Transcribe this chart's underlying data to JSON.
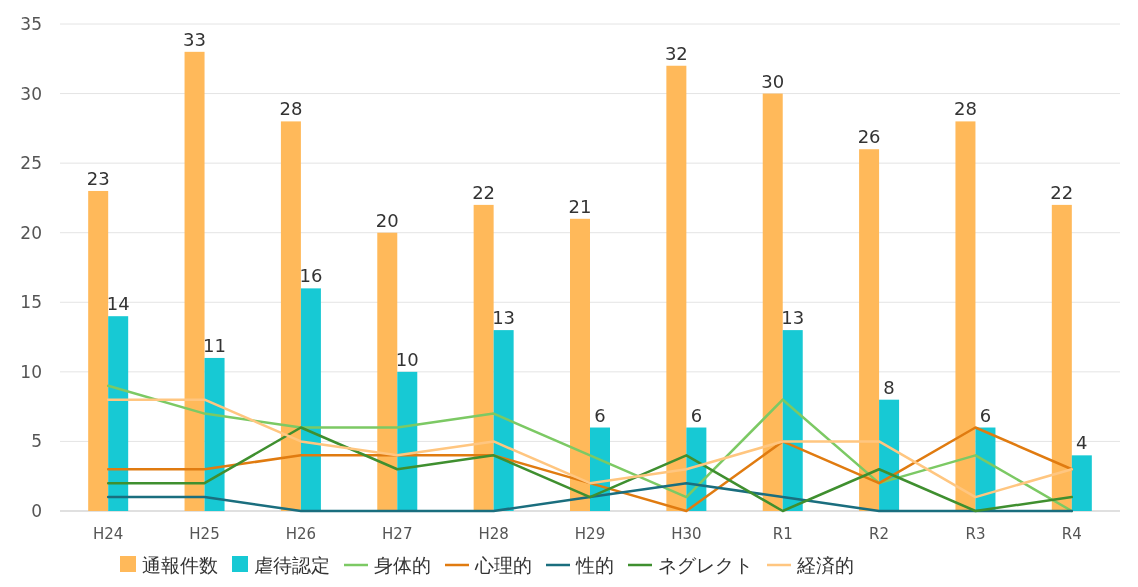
{
  "chart_data": {
    "type": "bar",
    "categories": [
      "H24",
      "H25",
      "H26",
      "H27",
      "H28",
      "H29",
      "H30",
      "R1",
      "R2",
      "R3",
      "R4"
    ],
    "series": [
      {
        "name": "通報件数",
        "color": "#ffb95a",
        "values": [
          23,
          33,
          28,
          20,
          22,
          21,
          32,
          30,
          26,
          28,
          22
        ],
        "data_labels": true
      },
      {
        "name": "虐待認定",
        "color": "#17c9d4",
        "values": [
          14,
          11,
          16,
          10,
          13,
          6,
          6,
          13,
          8,
          6,
          4
        ],
        "data_labels": true
      },
      {
        "name": "身体的",
        "type": "line",
        "color": "#7cc964",
        "values": [
          9,
          7,
          6,
          6,
          7,
          4,
          1,
          8,
          2,
          4,
          0
        ]
      },
      {
        "name": "心理的",
        "type": "line",
        "color": "#e07b10",
        "values": [
          3,
          3,
          4,
          4,
          4,
          2,
          0,
          5,
          2,
          6,
          3
        ]
      },
      {
        "name": "性的",
        "type": "line",
        "color": "#1a6e7e",
        "values": [
          1,
          1,
          0,
          0,
          0,
          1,
          2,
          1,
          0,
          0,
          0
        ]
      },
      {
        "name": "ネグレクト",
        "type": "line",
        "color": "#3f8f2f",
        "values": [
          2,
          2,
          6,
          3,
          4,
          1,
          4,
          0,
          3,
          0,
          1
        ]
      },
      {
        "name": "経済的",
        "type": "line",
        "color": "#ffc680",
        "values": [
          8,
          8,
          5,
          4,
          5,
          2,
          3,
          5,
          5,
          1,
          3
        ]
      }
    ],
    "ylim": [
      0,
      35
    ],
    "yticks": [
      0,
      5,
      10,
      15,
      20,
      25,
      30,
      35
    ],
    "grid": "y",
    "legend": "bottom",
    "marker": "none",
    "line_style": "solid"
  }
}
